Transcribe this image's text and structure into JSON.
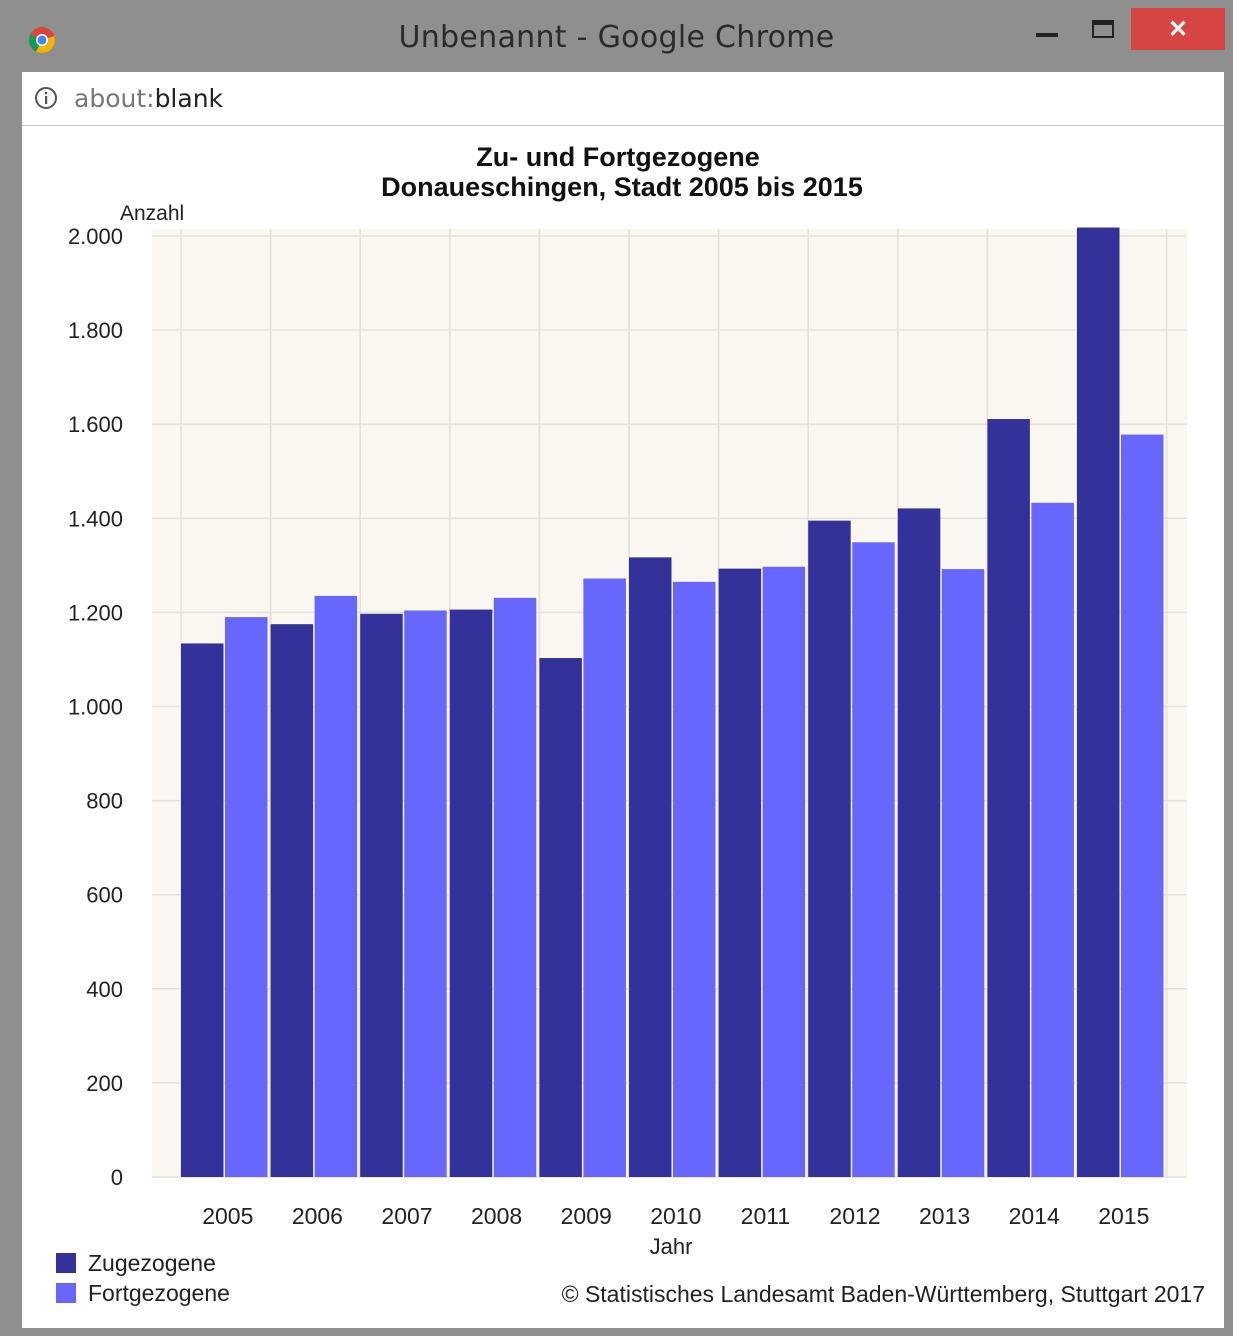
{
  "window": {
    "title": "Unbenannt - Google Chrome",
    "url_scheme": "about:",
    "url_path": "blank",
    "close_glyph": "✕"
  },
  "icons": [
    "chrome-logo-icon",
    "info-icon",
    "minimize-icon",
    "maximize-icon",
    "close-icon"
  ],
  "colors": {
    "zugezogene": "#33329a",
    "fortgezogene": "#6766ff",
    "plot_bg": "#f9f7ef",
    "grid": "#e3e1d8",
    "close_button": "#d64541"
  },
  "chart_data": {
    "type": "bar",
    "title_line1": "Zu- und Fortgezogene",
    "title_line2": "Donaueschingen, Stadt 2005 bis 2015",
    "ylabel": "Anzahl",
    "xlabel": "Jahr",
    "ylim": [
      0,
      2000
    ],
    "yticks": [
      0,
      200,
      400,
      600,
      800,
      1000,
      1200,
      1400,
      1600,
      1800,
      2000
    ],
    "ytick_labels": [
      "0",
      "200",
      "400",
      "600",
      "800",
      "1.000",
      "1.200",
      "1.400",
      "1.600",
      "1.800",
      "2.000"
    ],
    "categories": [
      "2005",
      "2006",
      "2007",
      "2008",
      "2009",
      "2010",
      "2011",
      "2012",
      "2013",
      "2014",
      "2015"
    ],
    "series": [
      {
        "name": "Zugezogene",
        "values": [
          1134,
          1175,
          1197,
          1206,
          1103,
          1317,
          1293,
          1395,
          1421,
          1611,
          2018
        ]
      },
      {
        "name": "Fortgezogene",
        "values": [
          1190,
          1235,
          1204,
          1231,
          1272,
          1265,
          1297,
          1349,
          1292,
          1433,
          1578
        ]
      }
    ],
    "grid": true,
    "legend_position": "bottom-left",
    "source": "© Statistisches Landesamt Baden-Württemberg, Stuttgart 2017"
  }
}
